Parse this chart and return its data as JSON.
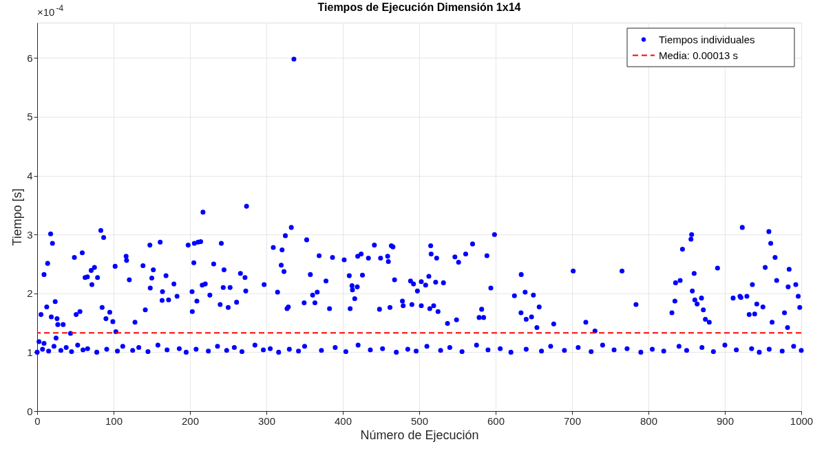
{
  "chart_data": {
    "type": "scatter",
    "title": "Tiempos de Ejecución Dimensión 1x14",
    "xlabel": "Número de Ejecución",
    "ylabel": "Tiempo [s]",
    "annotations": [
      "×10$^{-4}$",
      "Media: 0.00013 s"
    ],
    "xlim": [
      0,
      1000
    ],
    "xticks": [
      0,
      100,
      200,
      300,
      400,
      500,
      600,
      700,
      800,
      900,
      1000
    ],
    "ylim": [
      0,
      6.6
    ],
    "yticks": [
      0,
      1,
      2,
      3,
      4,
      5,
      6
    ],
    "grid": true,
    "legend": "top right",
    "marker": "circle",
    "ref_lines": [
      {
        "axis": "y",
        "value": 1.33,
        "color": "#ff0000",
        "line_style": "dashed"
      }
    ],
    "series": [
      {
        "name": "Tiempos individuales",
        "color": "#0000ff",
        "x": [
          2.4,
          5,
          9,
          9,
          12.5,
          13.7,
          17.6,
          20,
          23.6,
          18.5,
          26,
          24.7,
          27,
          34,
          43.6,
          48.7,
          51,
          56,
          59,
          62.7,
          65.7,
          70.7,
          75,
          71.6,
          79,
          83.3,
          87,
          85,
          90,
          95,
          99,
          102,
          103,
          117,
          116.4,
          120.6,
          128,
          138.5,
          141.5,
          147.5,
          150,
          152,
          148,
          161,
          164,
          163.5,
          168.6,
          172,
          179,
          183,
          197.6,
          203,
          202.7,
          205,
          205.7,
          210.5,
          214,
          217,
          216,
          220,
          209,
          226,
          231,
          241,
          244.5,
          243.5,
          239.5,
          252.5,
          250,
          266,
          272,
          274,
          273,
          261,
          297,
          309,
          320.5,
          319.4,
          323,
          324.8,
          314.6,
          327,
          336,
          332.6,
          352.7,
          357.5,
          369,
          378,
          386.5,
          360.5,
          366.5,
          363.5,
          382.6,
          349.4,
          328.7,
          401.8,
          408.4,
          412,
          412.6,
          418.9,
          415.6,
          409.6,
          419.5,
          424,
          425.7,
          433.5,
          441.3,
          449.4,
          458.7,
          459.6,
          463.5,
          465.6,
          467.7,
          448,
          461.7,
          478,
          479,
          488.6,
          492.5,
          497.6,
          502.7,
          508.4,
          512.6,
          515,
          515.6,
          522.8,
          521.5,
          531.7,
          490.4,
          502.7,
          513.8,
          518.9,
          524.6,
          546.7,
          551.5,
          560.8,
          569.8,
          588.6,
          593.7,
          598.5,
          633.5,
          638.6,
          649.4,
          624.6,
          633.2,
          640,
          578.4,
          581.7,
          584.3,
          537,
          548.8,
          657,
          647,
          654,
          676,
          701.5,
          718,
          730,
          765.4,
          783.7,
          830.7,
          834.6,
          835.5,
          841.5,
          844.5,
          855.6,
          856.5,
          859.8,
          857.4,
          860.7,
          863.7,
          869.4,
          871.8,
          874.5,
          879.6,
          890.4,
          910.8,
          919.8,
          921,
          922.8,
          928.8,
          931.8,
          936,
          939,
          941.8,
          949.8,
          952.8,
          957.6,
          960,
          961.8,
          965.7,
          967.8,
          978,
          982,
          982.8,
          984.1,
          992.8,
          996,
          998,
          0,
          7,
          15,
          22,
          31,
          38,
          45,
          53,
          60,
          66,
          78,
          91,
          105,
          112,
          125,
          133,
          145,
          158,
          170,
          186,
          195,
          208,
          224,
          236,
          248,
          258,
          268,
          285,
          296,
          305,
          316,
          330,
          342,
          350,
          372,
          390,
          404,
          420,
          436,
          452,
          470,
          485,
          496,
          510,
          528,
          540,
          556,
          575,
          590,
          606,
          620,
          640,
          660,
          672,
          690,
          708,
          725,
          740,
          755,
          772,
          790,
          805,
          820,
          840,
          850,
          870,
          885,
          900,
          915,
          935,
          945,
          958,
          975,
          990,
          1000
        ],
        "values": [
          1.18,
          1.64,
          1.15,
          2.32,
          1.77,
          2.51,
          3.01,
          2.85,
          1.86,
          1.6,
          1.57,
          1.24,
          1.47,
          1.47,
          1.32,
          2.61,
          1.64,
          1.69,
          2.69,
          2.27,
          2.28,
          2.39,
          2.44,
          2.15,
          2.27,
          3.07,
          2.95,
          1.76,
          1.57,
          1.68,
          1.52,
          2.46,
          1.35,
          2.56,
          2.63,
          2.23,
          1.51,
          2.47,
          1.72,
          2.82,
          2.26,
          2.4,
          2.09,
          2.87,
          2.03,
          1.88,
          2.3,
          1.89,
          2.16,
          1.95,
          2.82,
          1.69,
          2.03,
          2.52,
          2.85,
          2.87,
          2.88,
          3.38,
          2.14,
          2.16,
          1.87,
          1.97,
          2.5,
          2.85,
          2.4,
          2.1,
          1.81,
          2.1,
          1.76,
          2.34,
          2.27,
          3.48,
          2.04,
          1.85,
          2.15,
          2.78,
          2.74,
          2.48,
          2.37,
          2.98,
          2.02,
          1.74,
          5.98,
          3.12,
          2.91,
          2.32,
          2.64,
          2.21,
          2.61,
          1.97,
          2.02,
          1.84,
          1.74,
          1.84,
          1.77,
          2.57,
          2.3,
          2.13,
          2.06,
          2.11,
          1.91,
          1.74,
          2.63,
          2.67,
          2.31,
          2.6,
          2.82,
          2.6,
          2.63,
          2.54,
          2.81,
          2.79,
          2.23,
          1.73,
          1.76,
          1.87,
          1.79,
          2.21,
          2.16,
          2.04,
          2.2,
          2.14,
          2.29,
          2.81,
          2.67,
          2.6,
          2.19,
          2.18,
          1.81,
          1.79,
          1.74,
          1.79,
          1.69,
          2.62,
          2.53,
          2.67,
          2.84,
          2.64,
          2.09,
          3.0,
          2.32,
          2.02,
          1.97,
          1.96,
          1.67,
          1.56,
          1.59,
          1.73,
          1.59,
          1.49,
          1.55,
          1.77,
          1.6,
          1.42,
          1.48,
          2.38,
          1.51,
          1.36,
          2.38,
          1.81,
          1.67,
          1.87,
          2.18,
          2.22,
          2.75,
          2.92,
          3.0,
          2.34,
          2.04,
          1.89,
          1.82,
          1.92,
          1.72,
          1.56,
          1.51,
          2.43,
          1.92,
          1.95,
          1.93,
          3.12,
          1.95,
          1.64,
          2.15,
          1.65,
          1.82,
          1.77,
          2.44,
          3.05,
          2.85,
          1.51,
          2.61,
          2.22,
          1.67,
          1.42,
          2.11,
          2.41,
          2.15,
          1.95,
          1.76,
          1.0,
          1.05,
          1.02,
          1.1,
          1.03,
          1.08,
          1.01,
          1.12,
          1.04,
          1.06,
          1.0,
          1.05,
          1.02,
          1.1,
          1.03,
          1.08,
          1.01,
          1.12,
          1.04,
          1.06,
          1.0,
          1.05,
          1.02,
          1.1,
          1.03,
          1.08,
          1.01,
          1.12,
          1.04,
          1.06,
          1.0,
          1.05,
          1.02,
          1.1,
          1.03,
          1.08,
          1.01,
          1.12,
          1.04,
          1.06,
          1.0,
          1.05,
          1.02,
          1.1,
          1.03,
          1.08,
          1.01,
          1.12,
          1.04,
          1.06,
          1.0,
          1.05,
          1.02,
          1.1,
          1.03,
          1.08,
          1.01,
          1.12,
          1.04,
          1.06,
          1.0,
          1.05,
          1.02,
          1.1,
          1.03,
          1.08,
          1.01,
          1.12,
          1.04,
          1.06,
          1.0,
          1.05,
          1.02,
          1.1,
          1.03
        ]
      }
    ]
  }
}
